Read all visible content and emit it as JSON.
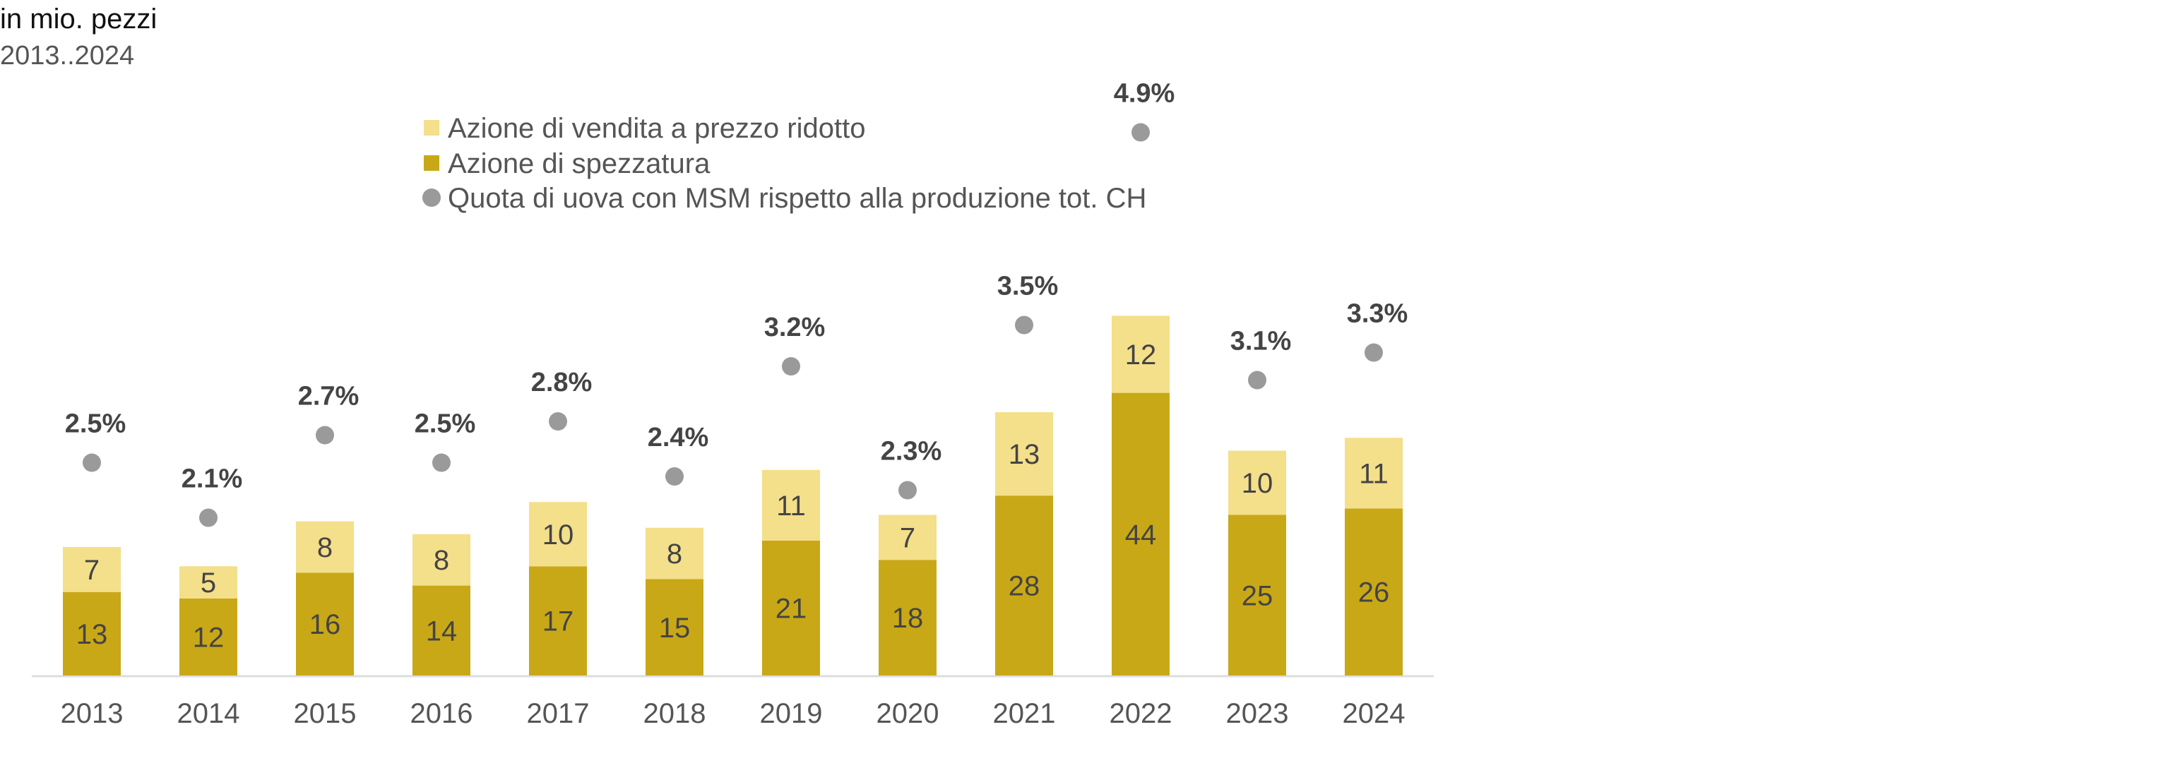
{
  "header": {
    "unit": "in mio. pezzi",
    "range": "2013..2024"
  },
  "colors": {
    "reduced_price": "#F4DF8A",
    "breaking": "#C9A817",
    "share_marker": "#9A9A9A",
    "axis": "#DDDDDD"
  },
  "chart_data": {
    "type": "bar",
    "stacked": true,
    "categories": [
      "2013",
      "2014",
      "2015",
      "2016",
      "2017",
      "2018",
      "2019",
      "2020",
      "2021",
      "2022",
      "2023",
      "2024"
    ],
    "series": [
      {
        "name": "Azione di spezzatura",
        "values": [
          13,
          12,
          16,
          14,
          17,
          15,
          21,
          18,
          28,
          44,
          25,
          26
        ]
      },
      {
        "name": "Azione di vendita a prezzo ridotto",
        "values": [
          7,
          5,
          8,
          8,
          10,
          8,
          11,
          7,
          13,
          12,
          10,
          11
        ]
      }
    ],
    "share": {
      "name": "Quota di uova con MSM rispetto alla produzione tot. CH",
      "values": [
        2.5,
        2.1,
        2.7,
        2.5,
        2.8,
        2.4,
        3.2,
        2.3,
        3.5,
        4.9,
        3.1,
        3.3
      ],
      "labels": [
        "2.5%",
        "2.1%",
        "2.7%",
        "2.5%",
        "2.8%",
        "2.4%",
        "3.2%",
        "2.3%",
        "3.5%",
        "4.9%",
        "3.1%",
        "3.3%"
      ]
    },
    "legend": {
      "placement": "top",
      "items": [
        "Azione di vendita a prezzo ridotto",
        "Azione di spezzatura",
        "Quota di uova con MSM rispetto alla produzione tot. CH"
      ]
    },
    "grid": false
  }
}
